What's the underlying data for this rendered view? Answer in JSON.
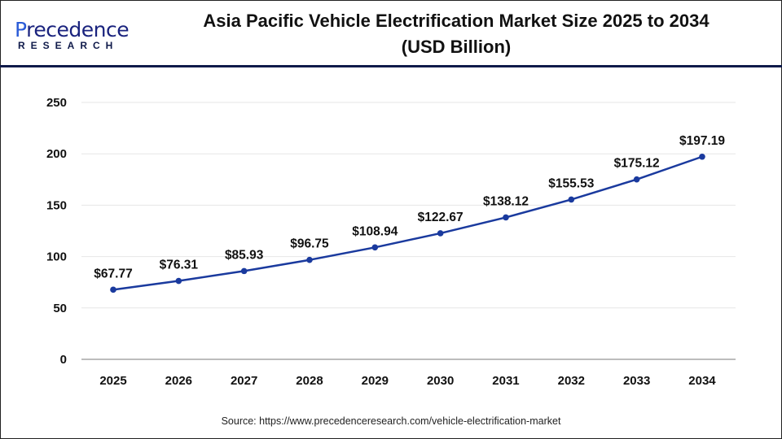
{
  "logo": {
    "main_prefix": "P",
    "main_rest": "recedence",
    "sub": "RESEARCH"
  },
  "title": {
    "line1": "Asia Pacific Vehicle Electrification Market Size 2025 to 2034",
    "line2": "(USD Billion)"
  },
  "source": "Source: https://www.precedenceresearch.com/vehicle-electrification-market",
  "colors": {
    "line": "#1a3a9e",
    "grid": "#e6e6e6",
    "axis": "#bdbdbd",
    "header_rule": "#0f1a4a"
  },
  "chart_data": {
    "type": "line",
    "title": "Asia Pacific Vehicle Electrification Market Size 2025 to 2034 (USD Billion)",
    "categories": [
      "2025",
      "2026",
      "2027",
      "2028",
      "2029",
      "2030",
      "2031",
      "2032",
      "2033",
      "2034"
    ],
    "values": [
      67.77,
      76.31,
      85.93,
      96.75,
      108.94,
      122.67,
      138.12,
      155.53,
      175.12,
      197.19
    ],
    "data_labels": [
      "$67.77",
      "$76.31",
      "$85.93",
      "$96.75",
      "$108.94",
      "$122.67",
      "$138.12",
      "$155.53",
      "$175.12",
      "$197.19"
    ],
    "yticks": [
      "0",
      "50",
      "100",
      "150",
      "200",
      "250"
    ],
    "ylim": [
      0,
      250
    ],
    "grid": true,
    "legend": "none",
    "xlabel": "",
    "ylabel": ""
  }
}
